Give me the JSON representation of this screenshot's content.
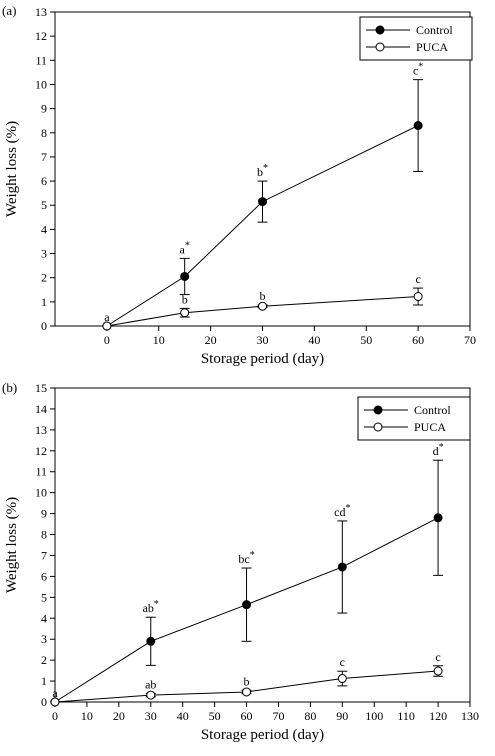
{
  "chart_data": [
    {
      "type": "line",
      "panel_label": "(a)",
      "xlabel": "Storage period (day)",
      "ylabel": "Weight loss (%)",
      "xlim": [
        -10,
        70
      ],
      "ylim": [
        0,
        13
      ],
      "xticks": [
        0,
        10,
        20,
        30,
        40,
        50,
        60,
        70
      ],
      "yticks": [
        0,
        1,
        2,
        3,
        4,
        5,
        6,
        7,
        8,
        9,
        10,
        11,
        12,
        13
      ],
      "grid": false,
      "legend_position": "top-right",
      "series": [
        {
          "name": "Control",
          "marker": "filled-circle",
          "x": [
            0,
            15,
            30,
            60
          ],
          "y": [
            0,
            2.05,
            5.15,
            8.3
          ],
          "err": [
            0,
            0.75,
            0.85,
            1.9
          ],
          "labels": [
            "a",
            "a*",
            "b*",
            "c*"
          ]
        },
        {
          "name": "PUCA",
          "marker": "open-circle",
          "x": [
            0,
            15,
            30,
            60
          ],
          "y": [
            0,
            0.55,
            0.82,
            1.22
          ],
          "err": [
            0,
            0.18,
            0.05,
            0.35
          ],
          "labels": [
            "",
            "b",
            "b",
            "c"
          ]
        }
      ]
    },
    {
      "type": "line",
      "panel_label": "(b)",
      "xlabel": "Storage period (day)",
      "ylabel": "Weight loss (%)",
      "xlim": [
        0,
        130
      ],
      "ylim": [
        0,
        15
      ],
      "xticks": [
        0,
        10,
        20,
        30,
        40,
        50,
        60,
        70,
        80,
        90,
        100,
        110,
        120,
        130
      ],
      "yticks": [
        0,
        1,
        2,
        3,
        4,
        5,
        6,
        7,
        8,
        9,
        10,
        11,
        12,
        13,
        14,
        15
      ],
      "grid": false,
      "legend_position": "top-right",
      "series": [
        {
          "name": "Control",
          "marker": "filled-circle",
          "x": [
            0,
            30,
            60,
            90,
            120
          ],
          "y": [
            0,
            2.9,
            4.65,
            6.45,
            8.8
          ],
          "err": [
            0,
            1.15,
            1.75,
            2.2,
            2.75
          ],
          "labels": [
            "a",
            "ab*",
            "bc*",
            "cd*",
            "d*"
          ]
        },
        {
          "name": "PUCA",
          "marker": "open-circle",
          "x": [
            0,
            30,
            60,
            90,
            120
          ],
          "y": [
            0,
            0.33,
            0.48,
            1.12,
            1.48
          ],
          "err": [
            0,
            0.08,
            0.08,
            0.35,
            0.25
          ],
          "labels": [
            "",
            "ab",
            "b",
            "c",
            "c"
          ]
        }
      ]
    }
  ]
}
